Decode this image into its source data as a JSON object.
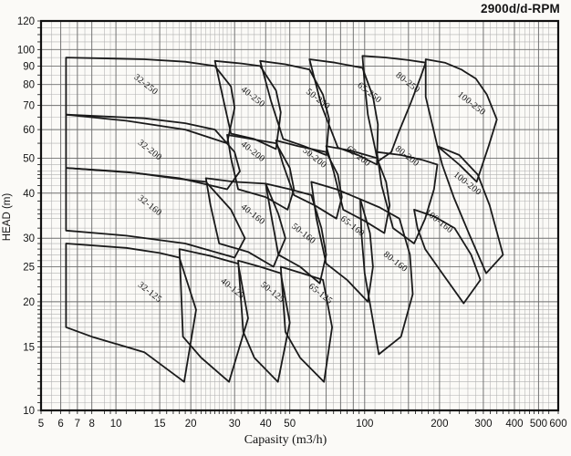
{
  "title": "2900d/d-RPM",
  "colors": {
    "background": "#fbfaf7",
    "curve": "#1a1a1a",
    "grid_minor": "#b0b0b0",
    "grid_major": "#6e6e6e",
    "frame": "#101010",
    "text": "#141414"
  },
  "chart_data": {
    "type": "area",
    "subtype": "pump-selection-regions",
    "title": "2900d/d-RPM",
    "xlabel": "Capasity (m3/h)",
    "ylabel": "HEAD (m)",
    "x_scale": "log",
    "y_scale": "log",
    "xlim": [
      5,
      600
    ],
    "ylim": [
      10,
      120
    ],
    "grid": true,
    "x_ticks_labeled": [
      5,
      6,
      7,
      8,
      10,
      15,
      20,
      30,
      40,
      50,
      100,
      200,
      300,
      400,
      500,
      600
    ],
    "y_ticks_labeled": [
      10,
      15,
      20,
      25,
      30,
      40,
      50,
      60,
      70,
      80,
      90,
      100,
      120
    ],
    "x_major": [
      5,
      6,
      7,
      8,
      10,
      15,
      20,
      30,
      40,
      50,
      60,
      70,
      80,
      90,
      100,
      150,
      200,
      300,
      400,
      500,
      600
    ],
    "x_minor": [
      5.5,
      6.5,
      7.5,
      9,
      9.5,
      11,
      12,
      13,
      14,
      16,
      17,
      18,
      19,
      21,
      22,
      23,
      24,
      25,
      26,
      27,
      28,
      29,
      32,
      34,
      36,
      38,
      42,
      44,
      46,
      48,
      55,
      65,
      75,
      85,
      95,
      110,
      120,
      130,
      140,
      160,
      170,
      180,
      190,
      220,
      240,
      260,
      280,
      320,
      340,
      360,
      380,
      420,
      440,
      460,
      480,
      520,
      550
    ],
    "y_major": [
      10,
      15,
      20,
      25,
      30,
      40,
      50,
      60,
      70,
      80,
      90,
      100,
      120
    ],
    "y_minor": [
      10.5,
      11,
      11.5,
      12,
      12.5,
      13,
      13.5,
      14,
      14.5,
      15.5,
      16,
      16.5,
      17,
      17.5,
      18,
      18.5,
      19,
      19.5,
      21,
      22,
      23,
      24,
      26,
      27,
      28,
      29,
      32,
      34,
      35,
      36,
      38,
      42,
      44,
      45,
      46,
      48,
      55,
      65,
      75,
      85,
      95,
      105,
      110,
      115
    ],
    "label_rotation_deg": 38,
    "regions": [
      {
        "label": "32-250",
        "label_pos": [
          13,
          79
        ],
        "polygon": [
          [
            6.3,
            95
          ],
          [
            13,
            94
          ],
          [
            19,
            92.5
          ],
          [
            25,
            90
          ],
          [
            29,
            79
          ],
          [
            30,
            69
          ],
          [
            28,
            55
          ],
          [
            19,
            60
          ],
          [
            11,
            63.5
          ],
          [
            6.3,
            66
          ]
        ]
      },
      {
        "label": "40-250",
        "label_pos": [
          35,
          73
        ],
        "polygon": [
          [
            25,
            93
          ],
          [
            32,
            91.5
          ],
          [
            38,
            90
          ],
          [
            44,
            77
          ],
          [
            46,
            67
          ],
          [
            44,
            53
          ],
          [
            36,
            56.5
          ],
          [
            29,
            58.5
          ],
          [
            27,
            73
          ]
        ]
      },
      {
        "label": "50-250",
        "label_pos": [
          64,
          72
        ],
        "polygon": [
          [
            38,
            93
          ],
          [
            48,
            91
          ],
          [
            60,
            88
          ],
          [
            68,
            75
          ],
          [
            72,
            64
          ],
          [
            70,
            51
          ],
          [
            57,
            54
          ],
          [
            47,
            56.5
          ],
          [
            42,
            72
          ]
        ]
      },
      {
        "label": "65-250",
        "label_pos": [
          103,
          75
        ],
        "polygon": [
          [
            60,
            94
          ],
          [
            76,
            92
          ],
          [
            98,
            89
          ],
          [
            108,
            74
          ],
          [
            113,
            62
          ],
          [
            112,
            48
          ],
          [
            94,
            51
          ],
          [
            78,
            53.5
          ],
          [
            67,
            70
          ]
        ]
      },
      {
        "label": "80-250",
        "label_pos": [
          147,
          80
        ],
        "polygon": [
          [
            98,
            96
          ],
          [
            122,
            95
          ],
          [
            150,
            93.5
          ],
          [
            176,
            92
          ],
          [
            168,
            84
          ],
          [
            153,
            71
          ],
          [
            137,
            59
          ],
          [
            128,
            52
          ],
          [
            113,
            49
          ],
          [
            103,
            66
          ],
          [
            100,
            80
          ]
        ]
      },
      {
        "label": "100-250",
        "label_pos": [
          265,
          70
        ],
        "polygon": [
          [
            176,
            94
          ],
          [
            210,
            92
          ],
          [
            245,
            88
          ],
          [
            280,
            83
          ],
          [
            310,
            75
          ],
          [
            340,
            64
          ],
          [
            315,
            54
          ],
          [
            282,
            43
          ],
          [
            240,
            48
          ],
          [
            196,
            54
          ],
          [
            176,
            74
          ]
        ]
      },
      {
        "label": "32-200",
        "label_pos": [
          13.5,
          52
        ],
        "polygon": [
          [
            6.3,
            66
          ],
          [
            13,
            64.5
          ],
          [
            19,
            62.5
          ],
          [
            25,
            60
          ],
          [
            30,
            52
          ],
          [
            31.5,
            46
          ],
          [
            28,
            41
          ],
          [
            18,
            44
          ],
          [
            11,
            45.8
          ],
          [
            6.3,
            47
          ]
        ]
      },
      {
        "label": "40-200",
        "label_pos": [
          35,
          51.5
        ],
        "polygon": [
          [
            28,
            58
          ],
          [
            35,
            56.5
          ],
          [
            44,
            55
          ],
          [
            50,
            47
          ],
          [
            52,
            41
          ],
          [
            49,
            36
          ],
          [
            40,
            39
          ],
          [
            31,
            41
          ],
          [
            29,
            50
          ]
        ]
      },
      {
        "label": "50-200",
        "label_pos": [
          62,
          49.5
        ],
        "polygon": [
          [
            44,
            56
          ],
          [
            54,
            54
          ],
          [
            70,
            52
          ],
          [
            78,
            45
          ],
          [
            81,
            39
          ],
          [
            77,
            34
          ],
          [
            63,
            37
          ],
          [
            52,
            39.5
          ],
          [
            47,
            48
          ]
        ]
      },
      {
        "label": "65-200",
        "label_pos": [
          93,
          50
        ],
        "polygon": [
          [
            70,
            54
          ],
          [
            88,
            52.5
          ],
          [
            112,
            50
          ],
          [
            122,
            43
          ],
          [
            126,
            37
          ],
          [
            120,
            31
          ],
          [
            100,
            33.5
          ],
          [
            82,
            36
          ],
          [
            75,
            46
          ]
        ]
      },
      {
        "label": "80-200",
        "label_pos": [
          146,
          50
        ],
        "polygon": [
          [
            112,
            52
          ],
          [
            140,
            51
          ],
          [
            170,
            49.5
          ],
          [
            196,
            48
          ],
          [
            190,
            41
          ],
          [
            175,
            34
          ],
          [
            158,
            29
          ],
          [
            130,
            32
          ],
          [
            117,
            42
          ]
        ]
      },
      {
        "label": "100-200",
        "label_pos": [
          255,
          42
        ],
        "polygon": [
          [
            196,
            54
          ],
          [
            240,
            51
          ],
          [
            285,
            45
          ],
          [
            318,
            37
          ],
          [
            360,
            27
          ],
          [
            308,
            24
          ],
          [
            262,
            31
          ],
          [
            228,
            39
          ],
          [
            205,
            48
          ]
        ]
      },
      {
        "label": "32-160",
        "label_pos": [
          13.5,
          36.5
        ],
        "polygon": [
          [
            6.3,
            47
          ],
          [
            12,
            45.5
          ],
          [
            17,
            44
          ],
          [
            23,
            43
          ],
          [
            29,
            36
          ],
          [
            33,
            30
          ],
          [
            30,
            26.5
          ],
          [
            19,
            29
          ],
          [
            11,
            30.5
          ],
          [
            6.3,
            31.5
          ]
        ]
      },
      {
        "label": "40-160",
        "label_pos": [
          35,
          34.5
        ],
        "polygon": [
          [
            23,
            44
          ],
          [
            30,
            43
          ],
          [
            40,
            42.5
          ],
          [
            45,
            35
          ],
          [
            48,
            30
          ],
          [
            43,
            25
          ],
          [
            34,
            27.5
          ],
          [
            26,
            29
          ],
          [
            24,
            37
          ]
        ]
      },
      {
        "label": "50-160",
        "label_pos": [
          56,
          30.5
        ],
        "polygon": [
          [
            40,
            42.5
          ],
          [
            50,
            41
          ],
          [
            61,
            39.5
          ],
          [
            67,
            32
          ],
          [
            70,
            27
          ],
          [
            66,
            22.5
          ],
          [
            55,
            25
          ],
          [
            45,
            27
          ],
          [
            42,
            35
          ]
        ]
      },
      {
        "label": "65-160",
        "label_pos": [
          88,
          32
        ],
        "polygon": [
          [
            61,
            43
          ],
          [
            77,
            41
          ],
          [
            96,
            38.5
          ],
          [
            105,
            31
          ],
          [
            108,
            25
          ],
          [
            103,
            20
          ],
          [
            85,
            23
          ],
          [
            70,
            25.5
          ],
          [
            64,
            34
          ]
        ]
      },
      {
        "label": "80-160",
        "label_pos": [
          131,
          25.5
        ],
        "polygon": [
          [
            96,
            38.5
          ],
          [
            115,
            36.5
          ],
          [
            138,
            34
          ],
          [
            152,
            27
          ],
          [
            156,
            21
          ],
          [
            140,
            16
          ],
          [
            114,
            14.3
          ],
          [
            100,
            24
          ],
          [
            97,
            31
          ]
        ]
      },
      {
        "label": "100-160",
        "label_pos": [
          196,
          33
        ],
        "polygon": [
          [
            158,
            36
          ],
          [
            190,
            34.5
          ],
          [
            230,
            32
          ],
          [
            268,
            27
          ],
          [
            292,
            23
          ],
          [
            250,
            19.8
          ],
          [
            205,
            24
          ],
          [
            175,
            28
          ],
          [
            163,
            32
          ]
        ]
      },
      {
        "label": "32-125",
        "label_pos": [
          13.5,
          21
        ],
        "polygon": [
          [
            6.3,
            29
          ],
          [
            11,
            28.2
          ],
          [
            15,
            27.3
          ],
          [
            18,
            26.5
          ],
          [
            21,
            19
          ],
          [
            18.8,
            12
          ],
          [
            13,
            14.5
          ],
          [
            8,
            16
          ],
          [
            6.3,
            17
          ]
        ]
      },
      {
        "label": "40-125",
        "label_pos": [
          29,
          21.5
        ],
        "polygon": [
          [
            18,
            28
          ],
          [
            24,
            26.8
          ],
          [
            31,
            25.5
          ],
          [
            34,
            18
          ],
          [
            28.5,
            12
          ],
          [
            22,
            14
          ],
          [
            18.6,
            16
          ]
        ]
      },
      {
        "label": "50-125",
        "label_pos": [
          42,
          21
        ],
        "polygon": [
          [
            31,
            26
          ],
          [
            38,
            25
          ],
          [
            46,
            24
          ],
          [
            50,
            17.5
          ],
          [
            44.8,
            12
          ],
          [
            36,
            14
          ],
          [
            32.5,
            16.5
          ]
        ]
      },
      {
        "label": "65-125",
        "label_pos": [
          65.5,
          20.8
        ],
        "polygon": [
          [
            46,
            25
          ],
          [
            56,
            24
          ],
          [
            68,
            23
          ],
          [
            74,
            17
          ],
          [
            68.6,
            12
          ],
          [
            55,
            14
          ],
          [
            48,
            16.5
          ]
        ]
      }
    ]
  }
}
